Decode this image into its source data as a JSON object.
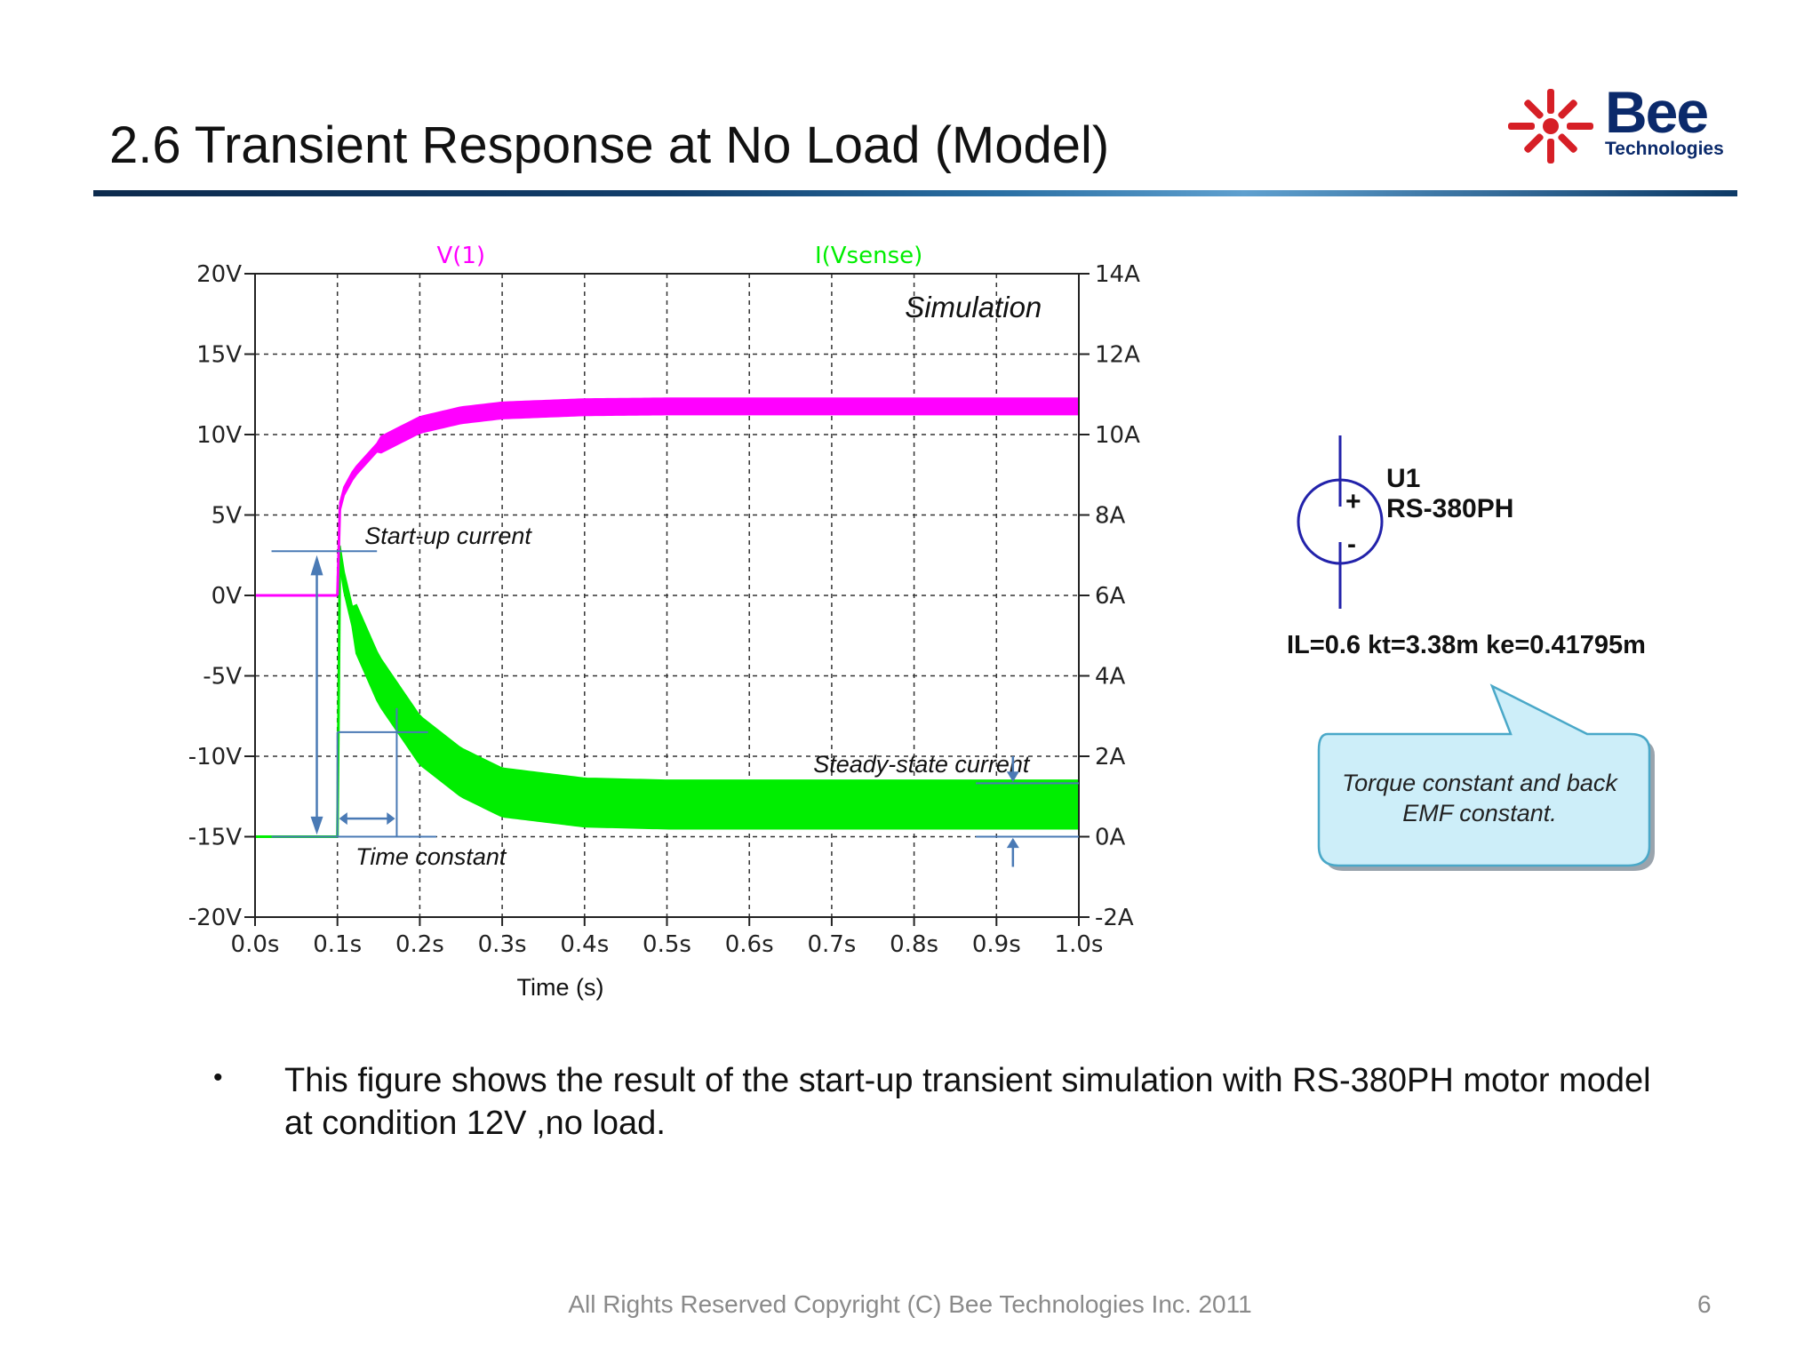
{
  "slide": {
    "title": "2.6 Transient Response at No Load (Model)",
    "logo": {
      "name": "Bee",
      "sub": "Technologies"
    },
    "bullet_symbol": "•",
    "bullet_text": "This figure shows the result of the start-up transient simulation with RS-380PH motor model at condition 12V ,no load.",
    "footer": "All Rights Reserved Copyright (C) Bee Technologies Inc. 2011",
    "page_number": "6"
  },
  "symbol": {
    "ref": "U1",
    "value": "RS-380PH",
    "plus": "+",
    "minus": "-",
    "params": "IL=0.6 kt=3.38m ke=0.41795m",
    "callout": "Torque constant and back EMF constant."
  },
  "colors": {
    "voltage": "#ff00ff",
    "current": "#00ee00",
    "annotation": "#4a7ab5",
    "callout_fill": "#cdeef9",
    "callout_border": "#4aa8c8"
  },
  "chart_data": {
    "type": "line",
    "xlabel": "Time (s)",
    "x_ticks": [
      "0.0s",
      "0.1s",
      "0.2s",
      "0.3s",
      "0.4s",
      "0.5s",
      "0.6s",
      "0.7s",
      "0.8s",
      "0.9s",
      "1.0s"
    ],
    "xlim": [
      0,
      1.0
    ],
    "y_left_ticks": [
      "20V",
      "15V",
      "10V",
      "5V",
      "0V",
      "-5V",
      "-10V",
      "-15V",
      "-20V"
    ],
    "y_left_lim": [
      -20,
      20
    ],
    "y_right_ticks": [
      "14A",
      "12A",
      "10A",
      "8A",
      "6A",
      "4A",
      "2A",
      "0A",
      "-2A"
    ],
    "y_right_lim": [
      -2,
      14
    ],
    "grid": true,
    "series": [
      {
        "name": "V(1)",
        "axis": "left",
        "x": [
          0,
          0.1,
          0.103,
          0.105,
          0.12,
          0.15,
          0.2,
          0.25,
          0.3,
          0.4,
          0.5,
          0.7,
          1.0
        ],
        "y": [
          0,
          0,
          5.5,
          6.2,
          7.6,
          9.3,
          10.6,
          11.2,
          11.5,
          11.7,
          11.75,
          11.75,
          11.75
        ]
      },
      {
        "name": "I(Vsense)",
        "axis": "right",
        "x": [
          0,
          0.1,
          0.103,
          0.105,
          0.12,
          0.15,
          0.2,
          0.25,
          0.3,
          0.4,
          0.5,
          0.7,
          1.0
        ],
        "y": [
          0,
          0,
          7.0,
          6.6,
          5.3,
          3.9,
          2.4,
          1.6,
          1.1,
          0.85,
          0.8,
          0.8,
          0.8
        ],
        "ripple": 0.6
      }
    ],
    "annotations": [
      {
        "text": "Simulation"
      },
      {
        "text": "Start-up current"
      },
      {
        "text": "Steady-state current"
      },
      {
        "text": "Time constant"
      }
    ]
  }
}
